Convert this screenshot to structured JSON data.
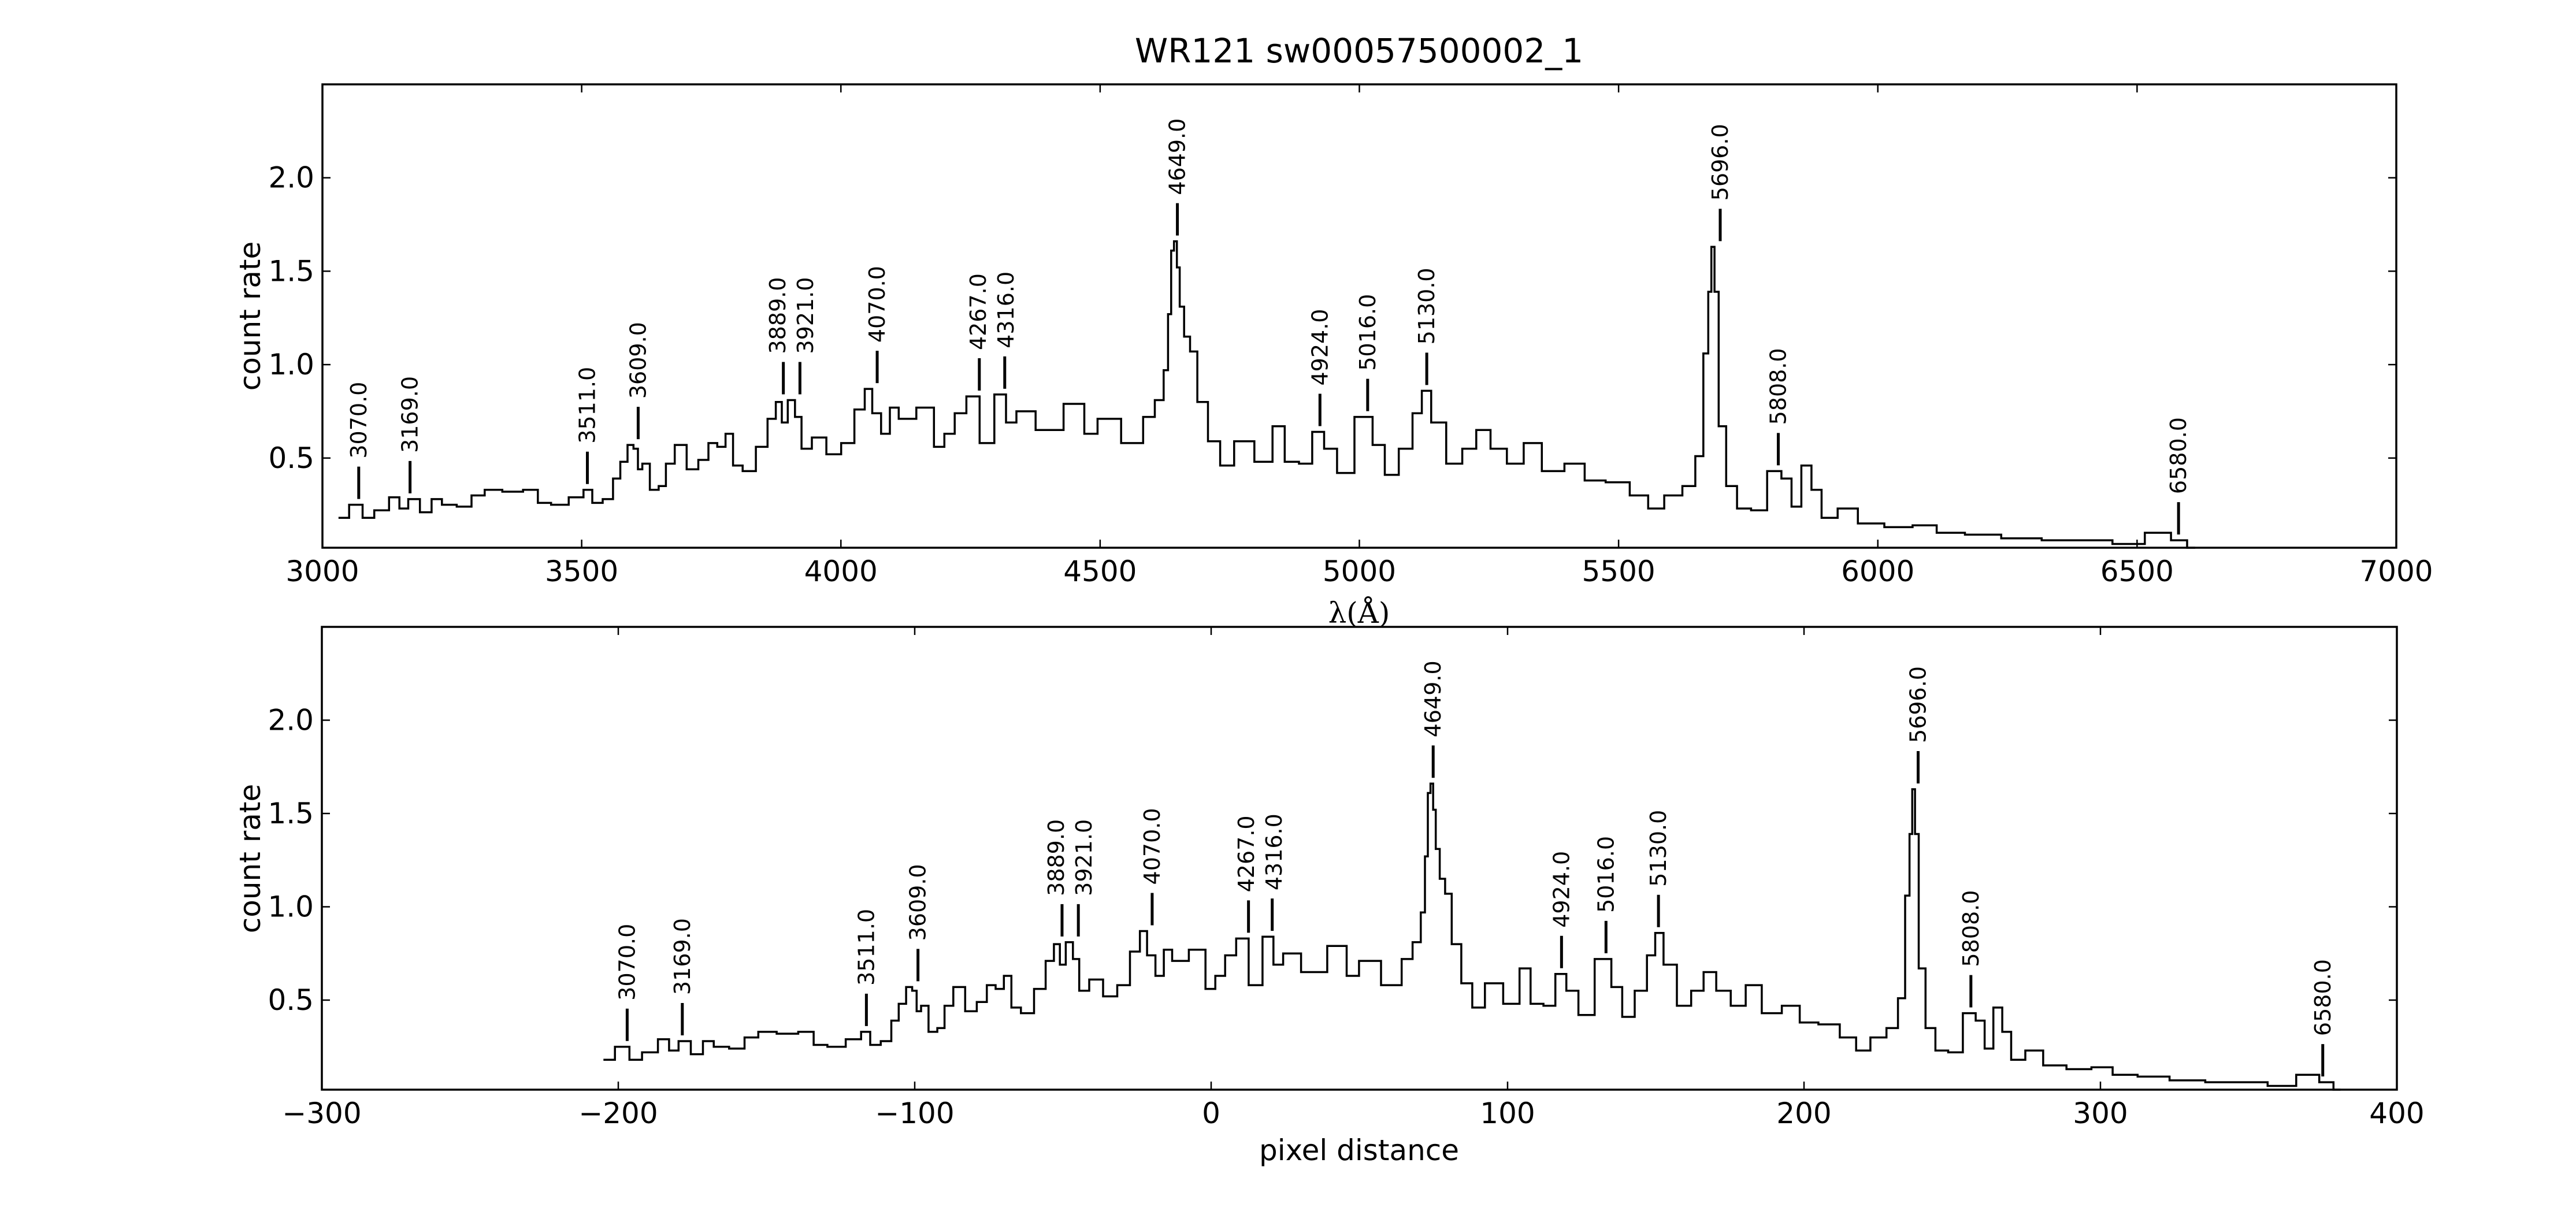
{
  "chart_data": [
    {
      "type": "line",
      "title": "WR121  sw00057500002_1",
      "xlabel": "λ(Å)",
      "ylabel": "count rate",
      "xlim": [
        3000,
        7000
      ],
      "ylim": [
        0.02,
        2.5
      ],
      "xticks": [
        3000,
        3500,
        4000,
        4500,
        5000,
        5500,
        6000,
        6500,
        7000
      ],
      "xtick_labels": [
        "3000",
        "3500",
        "4000",
        "4500",
        "5000",
        "5500",
        "6000",
        "6500",
        "7000"
      ],
      "yticks": [
        0.5,
        1.0,
        1.5,
        2.0
      ],
      "ytick_labels": [
        "0.5",
        "1.0",
        "1.5",
        "2.0"
      ],
      "grid": false,
      "drawstyle": "steps",
      "x": [
        3031,
        3072,
        3083,
        3117,
        3140,
        3157,
        3174,
        3202,
        3219,
        3242,
        3276,
        3299,
        3327,
        3367,
        3407,
        3424,
        3458,
        3492,
        3515,
        3526,
        3555,
        3566,
        3583,
        3594,
        3606,
        3611,
        3623,
        3640,
        3657,
        3668,
        3691,
        3714,
        3736,
        3753,
        3770,
        3785,
        3799,
        3822,
        3850,
        3867,
        3882,
        3890,
        3905,
        3918,
        3930,
        3958,
        3986,
        4015,
        4037,
        4055,
        4066,
        4089,
        4100,
        4123,
        4168,
        4191,
        4208,
        4231,
        4253,
        4282,
        4310,
        4327,
        4350,
        4401,
        4458,
        4481,
        4509,
        4572,
        4594,
        4617,
        4628,
        4634,
        4640,
        4645,
        4651,
        4656,
        4668,
        4679,
        4696,
        4720,
        4743,
        4774,
        4821,
        4844,
        4868,
        4899,
        4919,
        4945,
        4969,
        5012,
        5039,
        5059,
        5093,
        5112,
        5129,
        5148,
        5187,
        5210,
        5241,
        5265,
        5304,
        5330,
        5374,
        5417,
        5452,
        5498,
        5545,
        5569,
        5607,
        5639,
        5657,
        5670,
        5676,
        5682,
        5688,
        5698,
        5717,
        5740,
        5771,
        5802,
        5826,
        5841,
        5864,
        5880,
        5903,
        5942,
        5981,
        6044,
        6090,
        6137,
        6199,
        6277,
        6355,
        6425,
        6480,
        6550,
        6581,
        6612
      ],
      "y": [
        0.18,
        0.25,
        0.18,
        0.22,
        0.29,
        0.23,
        0.28,
        0.21,
        0.28,
        0.25,
        0.24,
        0.3,
        0.33,
        0.32,
        0.33,
        0.26,
        0.25,
        0.29,
        0.33,
        0.26,
        0.28,
        0.39,
        0.48,
        0.57,
        0.55,
        0.44,
        0.47,
        0.33,
        0.35,
        0.47,
        0.57,
        0.44,
        0.49,
        0.58,
        0.56,
        0.63,
        0.46,
        0.43,
        0.56,
        0.71,
        0.8,
        0.69,
        0.81,
        0.72,
        0.55,
        0.61,
        0.52,
        0.58,
        0.76,
        0.87,
        0.74,
        0.63,
        0.77,
        0.71,
        0.77,
        0.56,
        0.63,
        0.74,
        0.83,
        0.58,
        0.84,
        0.69,
        0.75,
        0.65,
        0.79,
        0.63,
        0.71,
        0.58,
        0.72,
        0.81,
        0.97,
        1.27,
        1.61,
        1.66,
        1.52,
        1.31,
        1.15,
        1.07,
        0.8,
        0.59,
        0.46,
        0.59,
        0.48,
        0.67,
        0.48,
        0.47,
        0.64,
        0.55,
        0.42,
        0.72,
        0.57,
        0.41,
        0.55,
        0.74,
        0.86,
        0.69,
        0.47,
        0.55,
        0.65,
        0.55,
        0.47,
        0.58,
        0.43,
        0.47,
        0.38,
        0.37,
        0.3,
        0.23,
        0.3,
        0.35,
        0.51,
        1.06,
        1.39,
        1.63,
        1.39,
        0.67,
        0.35,
        0.23,
        0.22,
        0.43,
        0.39,
        0.24,
        0.46,
        0.33,
        0.18,
        0.23,
        0.15,
        0.13,
        0.14,
        0.1,
        0.09,
        0.07,
        0.06,
        0.06,
        0.04,
        0.1,
        0.06,
        0.02
      ]
    },
    {
      "type": "line",
      "xlabel": "pixel distance",
      "ylabel": "count rate",
      "xlim": [
        -300,
        400
      ],
      "ylim": [
        0.02,
        2.5
      ],
      "xticks": [
        -300,
        -200,
        -100,
        0,
        100,
        200,
        300,
        400
      ],
      "xtick_labels": [
        "−300",
        "−200",
        "−100",
        "0",
        "100",
        "200",
        "300",
        "400"
      ],
      "yticks": [
        0.5,
        1.0,
        1.5,
        2.0
      ],
      "ytick_labels": [
        "0.5",
        "1.0",
        "1.5",
        "2.0"
      ],
      "grid": false,
      "drawstyle": "steps",
      "x_note_from_wavelength": true
    }
  ],
  "lines": [
    {
      "label": "3070.0",
      "wavelength": 3070,
      "pixel": -197.0
    },
    {
      "label": "3169.0",
      "wavelength": 3169,
      "pixel": -178.4
    },
    {
      "label": "3511.0",
      "wavelength": 3511,
      "pixel": -116.3
    },
    {
      "label": "3609.0",
      "wavelength": 3609,
      "pixel": -98.9
    },
    {
      "label": "3889.0",
      "wavelength": 3889,
      "pixel": -50.3
    },
    {
      "label": "3921.0",
      "wavelength": 3921,
      "pixel": -44.8
    },
    {
      "label": "4070.0",
      "wavelength": 4070,
      "pixel": -19.9
    },
    {
      "label": "4267.0",
      "wavelength": 4267,
      "pixel": 12.6
    },
    {
      "label": "4316.0",
      "wavelength": 4316,
      "pixel": 20.6
    },
    {
      "label": "4649.0",
      "wavelength": 4649,
      "pixel": 74.9
    },
    {
      "label": "4924.0",
      "wavelength": 4924,
      "pixel": 118.2
    },
    {
      "label": "5016.0",
      "wavelength": 5016,
      "pixel": 133.2
    },
    {
      "label": "5130.0",
      "wavelength": 5130,
      "pixel": 150.9
    },
    {
      "label": "5696.0",
      "wavelength": 5696,
      "pixel": 238.5
    },
    {
      "label": "5808.0",
      "wavelength": 5808,
      "pixel": 256.3
    },
    {
      "label": "6580.0",
      "wavelength": 6580,
      "pixel": 375.0
    }
  ],
  "pixel_range": {
    "start": -205,
    "end": 381
  }
}
